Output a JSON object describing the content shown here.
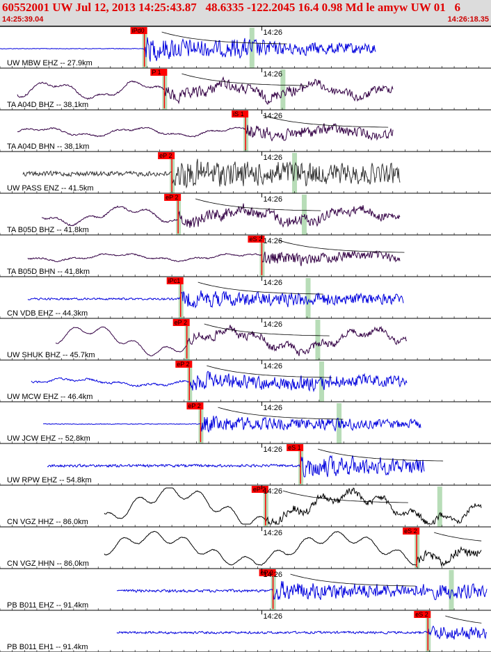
{
  "header": {
    "title": "60552001 UW Jul 12, 2013 14:25:43.87   48.6335 -122.2045 16.4 0.98 Md le amyw UW 01   6",
    "start_time": "14:25:39.04",
    "end_time": "14:26:18.35"
  },
  "colors": {
    "header_bg": "#dcdcdc",
    "title": "#e00000",
    "pick_box": "#ff0000",
    "pick_band": "#b8ddb8",
    "trace_blue": "#0000dd",
    "trace_purple": "#330044",
    "trace_gray": "#333333",
    "trace_black": "#000000"
  },
  "chart_data": {
    "type": "seismogram",
    "time_axis": {
      "start": "14:25:39.04",
      "end": "14:26:18.35",
      "tick_label": "14:26"
    },
    "traces": [
      {
        "label": "UW MBW EHZ -- 27.9km",
        "color": "blue",
        "pick": "iPd0",
        "pick_time": "14:25:50.6"
      },
      {
        "label": "TA A04D BHZ -- 38.1km",
        "color": "purple",
        "pick": "P 1",
        "pick_time": "14:25:52.2"
      },
      {
        "label": "TA A04D BHN -- 38.1km",
        "color": "purple",
        "pick": "iS 1",
        "pick_time": "14:25:58.7"
      },
      {
        "label": "UW PASS ENZ -- 41.5km",
        "color": "gray",
        "pick": "eP 2",
        "pick_time": "14:25:52.8"
      },
      {
        "label": "TA B05D BHZ -- 41.8km",
        "color": "purple",
        "pick": "eP 2",
        "pick_time": "14:25:53.3"
      },
      {
        "label": "TA B05D BHN -- 41.8km",
        "color": "purple",
        "pick": "eS 2",
        "pick_time": "14:26:00.0"
      },
      {
        "label": "CN VDB EHZ -- 44.3km",
        "color": "blue",
        "pick": "iPc1",
        "pick_time": "14:25:53.5"
      },
      {
        "label": "UW SHUK BHZ -- 45.7km",
        "color": "purple",
        "pick": "eP 2",
        "pick_time": "14:25:54.0"
      },
      {
        "label": "UW MCW EHZ -- 46.4km",
        "color": "blue",
        "pick": "eP 2",
        "pick_time": "14:25:54.2"
      },
      {
        "label": "UW JCW EHZ -- 52.8km",
        "color": "blue",
        "pick": "eP 2",
        "pick_time": "14:25:55.1"
      },
      {
        "label": "UW RPW EHZ -- 54.8km",
        "color": "blue",
        "pick": "eS 1",
        "pick_time": "14:26:03.1"
      },
      {
        "label": "CN VGZ HHZ -- 86.0km",
        "color": "black",
        "pick": "eP 2",
        "pick_time": "14:26:00.3"
      },
      {
        "label": "CN VGZ HHN -- 86.0km",
        "color": "black",
        "pick": "eS 2",
        "pick_time": "14:26:12.4"
      },
      {
        "label": "PB B011 EHZ -- 91.4km",
        "color": "blue",
        "pick": "eP 2",
        "pick_time": "14:26:00.9"
      },
      {
        "label": "PB B011 EH1 -- 91.4km",
        "color": "blue",
        "pick": "eS 2",
        "pick_time": "14:26:13.3"
      }
    ]
  }
}
